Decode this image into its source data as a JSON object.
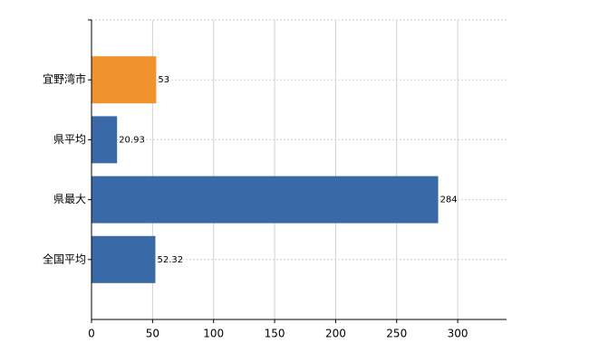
{
  "chart_data": {
    "type": "barh",
    "categories": [
      "宜野湾市",
      "県平均",
      "県最大",
      "全国平均"
    ],
    "values": [
      53,
      20.93,
      284,
      52.32
    ],
    "colors": [
      "#f0922e",
      "#3a69a8",
      "#3a69a8",
      "#3a69a8"
    ],
    "xlim": [
      0,
      340
    ],
    "xticks": [
      0,
      50,
      100,
      150,
      200,
      250,
      300
    ],
    "grid": true
  }
}
